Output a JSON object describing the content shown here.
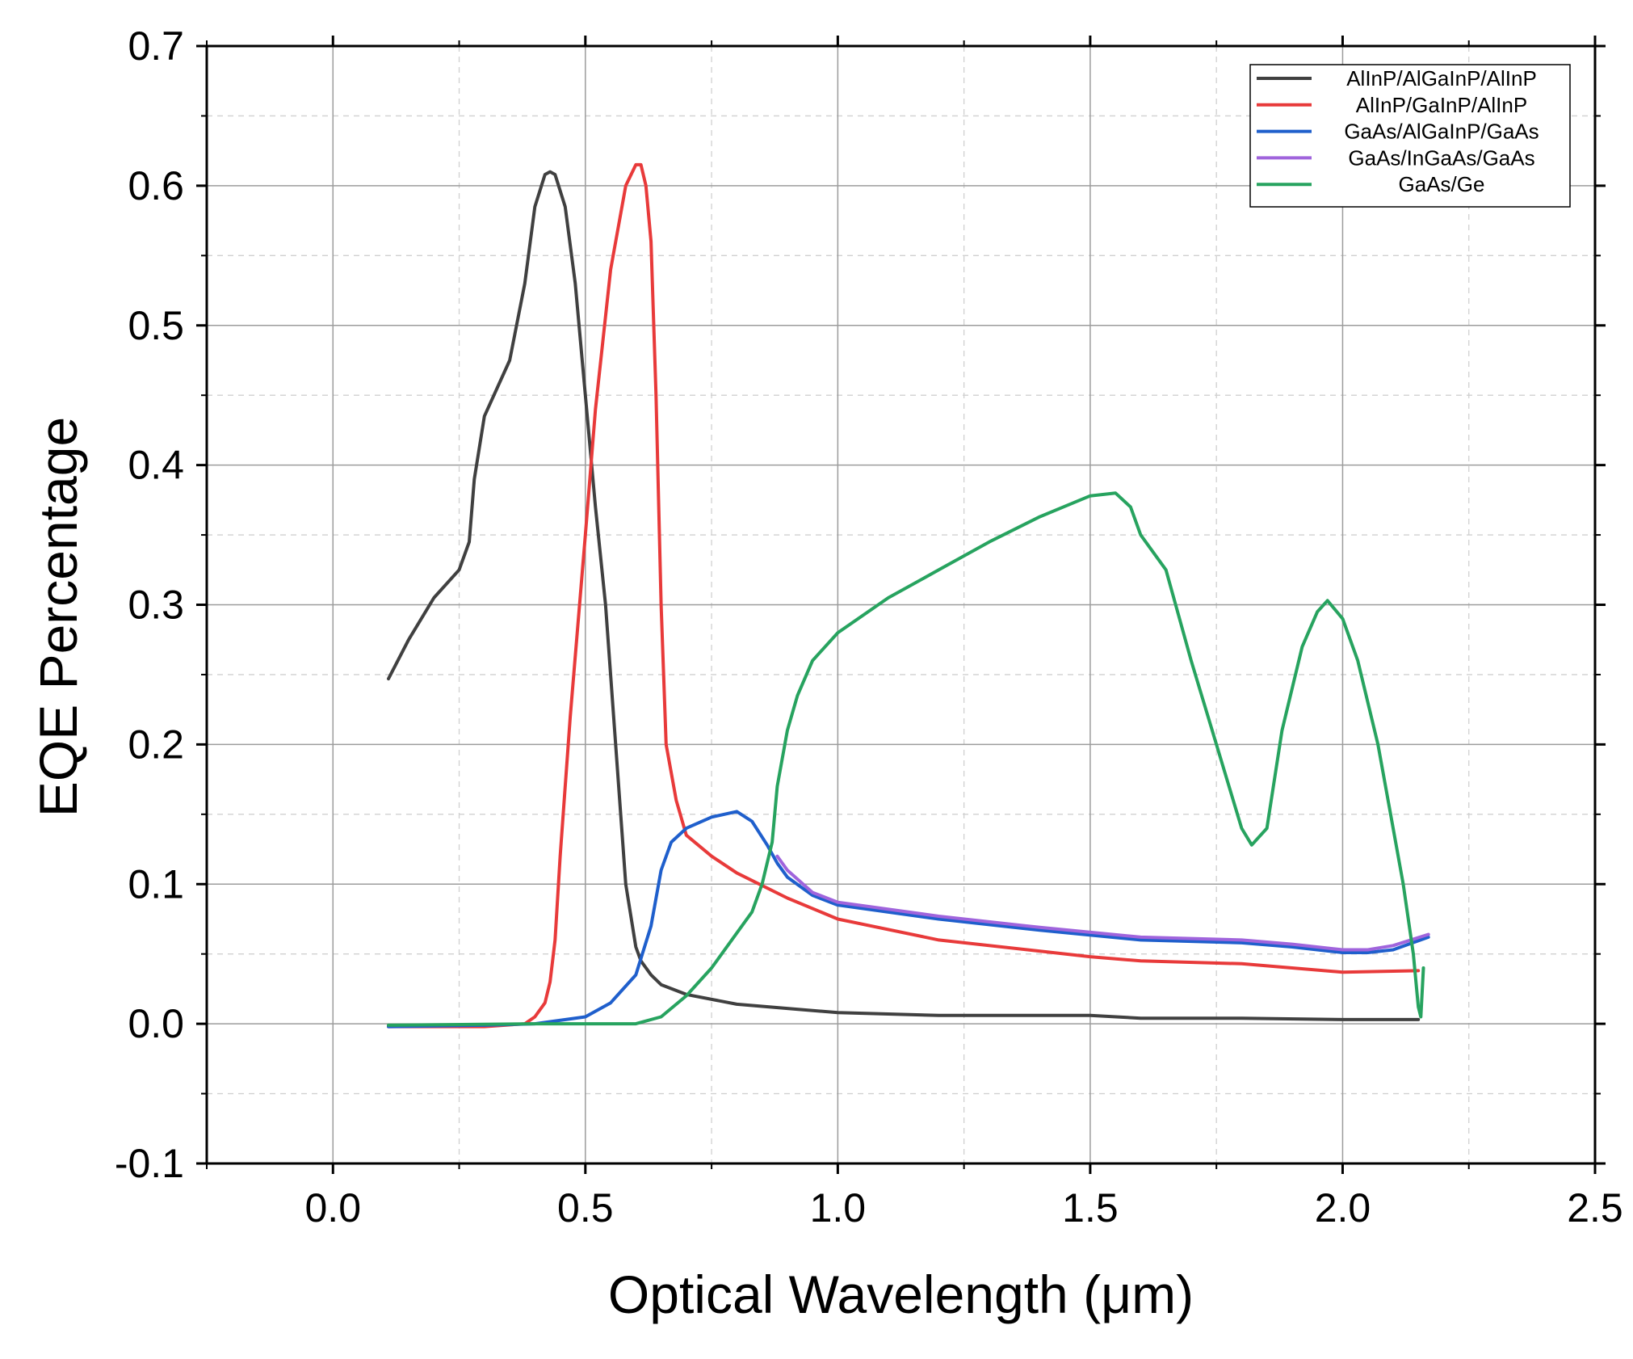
{
  "chart_data": {
    "type": "line",
    "title": "",
    "xlabel": "Optical Wavelength (μm)",
    "ylabel": "EQE Percentage",
    "xlim": [
      -0.25,
      2.5
    ],
    "ylim": [
      -0.1,
      0.7
    ],
    "x_ticks": [
      "0.0",
      "0.5",
      "1.0",
      "1.5",
      "2.0",
      "2.5"
    ],
    "x_tick_values": [
      0.0,
      0.5,
      1.0,
      1.5,
      2.0,
      2.5
    ],
    "y_ticks": [
      "-0.1",
      "0.0",
      "0.1",
      "0.2",
      "0.3",
      "0.4",
      "0.5",
      "0.6",
      "0.7"
    ],
    "y_tick_values": [
      -0.1,
      0.0,
      0.1,
      0.2,
      0.3,
      0.4,
      0.5,
      0.6,
      0.7
    ],
    "grid": true,
    "legend_position": "top-right",
    "series": [
      {
        "name": "AlInP/AlGaInP/AlInP",
        "color": "#404040",
        "x": [
          0.11,
          0.15,
          0.2,
          0.25,
          0.27,
          0.28,
          0.3,
          0.35,
          0.38,
          0.4,
          0.42,
          0.43,
          0.44,
          0.46,
          0.48,
          0.5,
          0.52,
          0.54,
          0.56,
          0.58,
          0.6,
          0.61,
          0.63,
          0.65,
          0.7,
          0.8,
          0.9,
          1.0,
          1.2,
          1.5,
          1.6,
          1.8,
          2.0,
          2.15
        ],
        "y": [
          0.247,
          0.275,
          0.305,
          0.325,
          0.345,
          0.39,
          0.435,
          0.475,
          0.53,
          0.585,
          0.608,
          0.61,
          0.608,
          0.585,
          0.53,
          0.45,
          0.37,
          0.3,
          0.2,
          0.1,
          0.055,
          0.045,
          0.035,
          0.028,
          0.021,
          0.014,
          0.011,
          0.008,
          0.006,
          0.006,
          0.004,
          0.004,
          0.003,
          0.003
        ]
      },
      {
        "name": "AlInP/GaInP/AlInP",
        "color": "#e83a3a",
        "x": [
          0.11,
          0.3,
          0.38,
          0.4,
          0.42,
          0.43,
          0.44,
          0.45,
          0.47,
          0.5,
          0.52,
          0.55,
          0.58,
          0.6,
          0.61,
          0.62,
          0.63,
          0.64,
          0.65,
          0.66,
          0.68,
          0.7,
          0.75,
          0.8,
          0.9,
          1.0,
          1.2,
          1.5,
          1.6,
          1.8,
          2.0,
          2.15
        ],
        "y": [
          -0.002,
          -0.002,
          0.0,
          0.005,
          0.015,
          0.03,
          0.06,
          0.12,
          0.22,
          0.35,
          0.44,
          0.54,
          0.6,
          0.615,
          0.615,
          0.6,
          0.56,
          0.45,
          0.3,
          0.2,
          0.16,
          0.135,
          0.12,
          0.108,
          0.09,
          0.075,
          0.06,
          0.048,
          0.045,
          0.043,
          0.037,
          0.038
        ]
      },
      {
        "name": "GaAs/AlGaInP/GaAs",
        "color": "#1f5fcc",
        "x": [
          0.11,
          0.3,
          0.4,
          0.5,
          0.55,
          0.6,
          0.63,
          0.65,
          0.67,
          0.7,
          0.75,
          0.8,
          0.83,
          0.86,
          0.88,
          0.9,
          0.95,
          1.0,
          1.2,
          1.4,
          1.6,
          1.8,
          1.9,
          2.0,
          2.05,
          2.1,
          2.17
        ],
        "y": [
          -0.002,
          -0.001,
          0.0,
          0.005,
          0.015,
          0.035,
          0.07,
          0.11,
          0.13,
          0.14,
          0.148,
          0.152,
          0.145,
          0.128,
          0.115,
          0.105,
          0.092,
          0.085,
          0.075,
          0.067,
          0.06,
          0.058,
          0.055,
          0.051,
          0.051,
          0.053,
          0.062
        ]
      },
      {
        "name": "GaAs/InGaAs/GaAs",
        "color": "#a064dc",
        "x": [
          0.88,
          0.9,
          0.95,
          1.0,
          1.2,
          1.4,
          1.6,
          1.8,
          1.9,
          2.0,
          2.05,
          2.1,
          2.17
        ],
        "y": [
          0.12,
          0.11,
          0.094,
          0.087,
          0.077,
          0.069,
          0.062,
          0.06,
          0.057,
          0.053,
          0.053,
          0.056,
          0.064
        ]
      },
      {
        "name": "GaAs/Ge",
        "color": "#27a35f",
        "x": [
          0.11,
          0.4,
          0.6,
          0.65,
          0.7,
          0.75,
          0.8,
          0.83,
          0.85,
          0.87,
          0.88,
          0.9,
          0.92,
          0.95,
          1.0,
          1.1,
          1.2,
          1.3,
          1.4,
          1.5,
          1.55,
          1.58,
          1.6,
          1.65,
          1.7,
          1.75,
          1.8,
          1.82,
          1.85,
          1.88,
          1.92,
          1.95,
          1.97,
          2.0,
          2.03,
          2.07,
          2.1,
          2.12,
          2.14,
          2.15,
          2.155,
          2.16
        ],
        "y": [
          -0.001,
          0.0,
          0.0,
          0.005,
          0.02,
          0.04,
          0.065,
          0.08,
          0.1,
          0.13,
          0.17,
          0.21,
          0.235,
          0.26,
          0.28,
          0.305,
          0.325,
          0.345,
          0.363,
          0.378,
          0.38,
          0.37,
          0.35,
          0.325,
          0.26,
          0.2,
          0.14,
          0.128,
          0.14,
          0.21,
          0.27,
          0.295,
          0.303,
          0.29,
          0.26,
          0.2,
          0.14,
          0.1,
          0.05,
          0.012,
          0.005,
          0.04
        ]
      }
    ]
  }
}
